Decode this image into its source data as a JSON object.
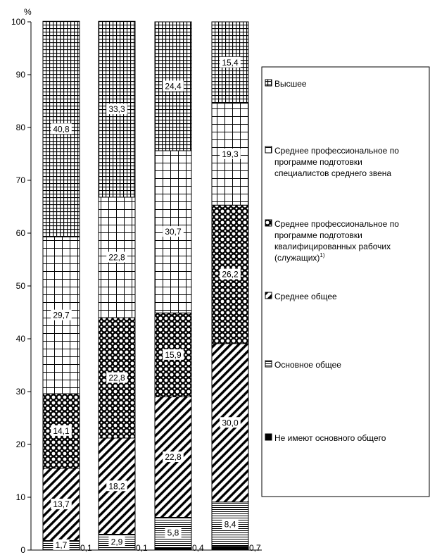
{
  "chart_data": {
    "type": "bar",
    "stacked": true,
    "y_unit": "%",
    "ylim": [
      0,
      100
    ],
    "y_ticks": [
      0,
      10,
      20,
      30,
      40,
      50,
      60,
      70,
      80,
      90,
      100
    ],
    "y_tick_labels": [
      "0",
      "10",
      "20",
      "30",
      "40",
      "50",
      "60",
      "70",
      "80",
      "90",
      "100"
    ],
    "bars": 4,
    "legend_position": "right",
    "series": [
      {
        "name": "Не имеют основного общего",
        "pattern": "solid-black",
        "values": [
          0.1,
          0.1,
          0.4,
          0.7
        ],
        "labels": [
          "0,1",
          "0,1",
          "0,4",
          "0,7"
        ]
      },
      {
        "name": "Основное общее",
        "pattern": "horizontal-lines",
        "values": [
          1.7,
          2.9,
          5.8,
          8.4
        ],
        "labels": [
          "1,7",
          "2,9",
          "5,8",
          "8,4"
        ]
      },
      {
        "name": "Среднее общее",
        "pattern": "diagonal-hatch",
        "values": [
          13.7,
          18.2,
          22.8,
          30.0
        ],
        "labels": [
          "13,7",
          "18,2",
          "22,8",
          "30,0"
        ]
      },
      {
        "name": "Среднее профессиональное по программе подготовки квалифицированных рабочих (служащих)",
        "name_note": "1)",
        "pattern": "circles",
        "values": [
          14.1,
          22.8,
          15.9,
          26.2
        ],
        "labels": [
          "14,1",
          "22,8",
          "15,9",
          "26,2"
        ]
      },
      {
        "name": "Среднее профессиональное по программе подготовки специалистов среднего звена",
        "pattern": "grid",
        "values": [
          29.7,
          22.8,
          30.7,
          19.3
        ],
        "labels": [
          "29,7",
          "22,8",
          "30,7",
          "19,3"
        ]
      },
      {
        "name": "Высшее",
        "pattern": "fine-grid",
        "values": [
          40.8,
          33.3,
          24.4,
          15.4
        ],
        "labels": [
          "40,8",
          "33,3",
          "24,4",
          "15,4"
        ]
      }
    ],
    "legend_lines": [
      [
        "Высшее"
      ],
      [
        "Среднее профессиональное по",
        "программе подготовки",
        "специалистов среднего звена"
      ],
      [
        "Среднее профессиональное по",
        "программе подготовки",
        "квалифицированных рабочих",
        "(служащих)"
      ],
      [
        "Среднее общее"
      ],
      [
        "Основное общее"
      ],
      [
        "Не имеют основного общего"
      ]
    ]
  }
}
